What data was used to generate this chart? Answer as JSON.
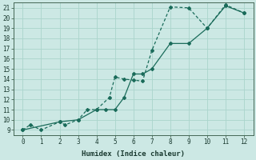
{
  "xlabel": "Humidex (Indice chaleur)",
  "bg_color": "#cce8e4",
  "grid_color": "#aad4cc",
  "line_color": "#1a6b5a",
  "xlim": [
    -0.5,
    12.5
  ],
  "ylim": [
    8.5,
    21.5
  ],
  "xticks": [
    0,
    1,
    2,
    3,
    4,
    5,
    6,
    7,
    8,
    9,
    10,
    11,
    12
  ],
  "yticks": [
    9,
    10,
    11,
    12,
    13,
    14,
    15,
    16,
    17,
    18,
    19,
    20,
    21
  ],
  "series1_x": [
    0,
    0.4,
    1,
    2,
    2.3,
    3,
    3.5,
    4,
    4.7,
    5,
    5.5,
    6,
    6.5,
    7,
    8,
    9,
    10,
    11,
    12
  ],
  "series1_y": [
    9.0,
    9.5,
    9.0,
    9.8,
    9.5,
    10.0,
    11.0,
    11.0,
    12.2,
    14.2,
    14.0,
    13.9,
    13.8,
    16.8,
    21.1,
    21.0,
    19.0,
    21.3,
    20.5
  ],
  "series2_x": [
    0,
    2,
    3,
    4,
    4.5,
    5,
    5.5,
    6,
    6.5,
    7,
    8,
    9,
    10,
    11,
    12
  ],
  "series2_y": [
    9.0,
    9.8,
    10.0,
    11.0,
    11.0,
    11.0,
    12.2,
    14.5,
    14.5,
    15.0,
    17.5,
    17.5,
    19.0,
    21.2,
    20.5
  ]
}
